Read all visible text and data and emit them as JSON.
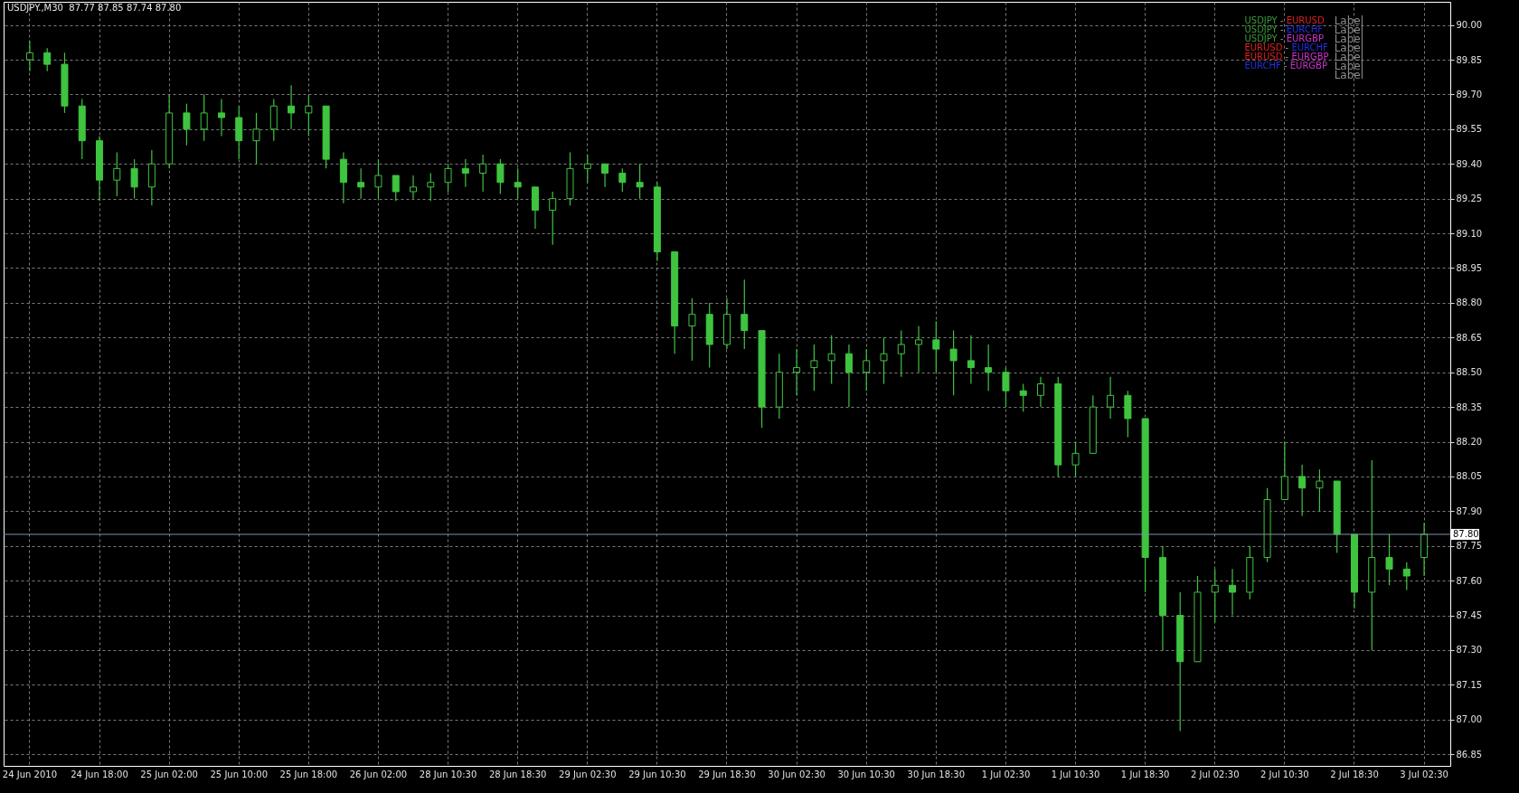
{
  "chart_data": {
    "type": "candlestick",
    "title": "USDJPY.,M30  87.77 87.85 87.74 87.80",
    "categories": [
      "24 Jun 2010",
      null,
      null,
      null,
      "24 Jun 18:00",
      null,
      null,
      null,
      "25 Jun 02:00",
      null,
      null,
      null,
      "25 Jun 10:00",
      null,
      null,
      null,
      "25 Jun 18:00",
      null,
      null,
      null,
      "26 Jun 02:00",
      null,
      null,
      null,
      "28 Jun 10:30",
      null,
      null,
      null,
      "28 Jun 18:30",
      null,
      null,
      null,
      "29 Jun 02:30",
      null,
      null,
      null,
      "29 Jun 10:30",
      null,
      null,
      null,
      "29 Jun 18:30",
      null,
      null,
      null,
      "30 Jun 02:30",
      null,
      null,
      null,
      "30 Jun 10:30",
      null,
      null,
      null,
      "30 Jun 18:30",
      null,
      null,
      null,
      "1 Jul 02:30",
      null,
      null,
      null,
      "1 Jul 10:30",
      null,
      null,
      null,
      "1 Jul 18:30",
      null,
      null,
      null,
      "2 Jul 02:30",
      null,
      null,
      null,
      "2 Jul 10:30",
      null,
      null,
      null,
      "2 Jul 18:30",
      null,
      null,
      null,
      "3 Jul 02:30"
    ],
    "ohlc": [
      [
        89.85,
        89.93,
        89.8,
        89.88
      ],
      [
        89.88,
        89.9,
        89.8,
        89.83
      ],
      [
        89.83,
        89.88,
        89.62,
        89.65
      ],
      [
        89.65,
        89.68,
        89.42,
        89.5
      ],
      [
        89.5,
        89.52,
        89.24,
        89.33
      ],
      [
        89.33,
        89.45,
        89.26,
        89.38
      ],
      [
        89.38,
        89.42,
        89.25,
        89.3
      ],
      [
        89.3,
        89.46,
        89.22,
        89.4
      ],
      [
        89.4,
        89.7,
        89.38,
        89.62
      ],
      [
        89.62,
        89.66,
        89.48,
        89.55
      ],
      [
        89.55,
        89.7,
        89.5,
        89.62
      ],
      [
        89.62,
        89.68,
        89.52,
        89.6
      ],
      [
        89.6,
        89.65,
        89.42,
        89.5
      ],
      [
        89.5,
        89.62,
        89.4,
        89.55
      ],
      [
        89.55,
        89.68,
        89.5,
        89.65
      ],
      [
        89.65,
        89.74,
        89.55,
        89.62
      ],
      [
        89.62,
        89.7,
        89.52,
        89.65
      ],
      [
        89.65,
        89.65,
        89.38,
        89.42
      ],
      [
        89.42,
        89.45,
        89.23,
        89.32
      ],
      [
        89.32,
        89.38,
        89.25,
        89.3
      ],
      [
        89.3,
        89.42,
        89.25,
        89.35
      ],
      [
        89.35,
        89.35,
        89.24,
        89.28
      ],
      [
        89.28,
        89.35,
        89.25,
        89.3
      ],
      [
        89.3,
        89.36,
        89.24,
        89.32
      ],
      [
        89.32,
        89.4,
        89.28,
        89.38
      ],
      [
        89.38,
        89.42,
        89.3,
        89.36
      ],
      [
        89.36,
        89.44,
        89.28,
        89.4
      ],
      [
        89.4,
        89.42,
        89.27,
        89.32
      ],
      [
        89.32,
        89.38,
        89.25,
        89.3
      ],
      [
        89.3,
        89.3,
        89.12,
        89.2
      ],
      [
        89.2,
        89.28,
        89.05,
        89.25
      ],
      [
        89.25,
        89.45,
        89.22,
        89.38
      ],
      [
        89.38,
        89.44,
        89.32,
        89.4
      ],
      [
        89.4,
        89.4,
        89.3,
        89.36
      ],
      [
        89.36,
        89.38,
        89.28,
        89.32
      ],
      [
        89.32,
        89.4,
        89.25,
        89.3
      ],
      [
        89.3,
        89.32,
        88.98,
        89.02
      ],
      [
        89.02,
        89.02,
        88.58,
        88.7
      ],
      [
        88.7,
        88.82,
        88.55,
        88.75
      ],
      [
        88.75,
        88.8,
        88.52,
        88.62
      ],
      [
        88.62,
        88.82,
        88.6,
        88.75
      ],
      [
        88.75,
        88.9,
        88.6,
        88.68
      ],
      [
        88.68,
        88.68,
        88.26,
        88.35
      ],
      [
        88.35,
        88.58,
        88.3,
        88.5
      ],
      [
        88.5,
        88.6,
        88.4,
        88.52
      ],
      [
        88.52,
        88.62,
        88.42,
        88.55
      ],
      [
        88.55,
        88.66,
        88.45,
        88.58
      ],
      [
        88.58,
        88.62,
        88.35,
        88.5
      ],
      [
        88.5,
        88.6,
        88.42,
        88.55
      ],
      [
        88.55,
        88.65,
        88.45,
        88.58
      ],
      [
        88.58,
        88.68,
        88.48,
        88.62
      ],
      [
        88.62,
        88.7,
        88.5,
        88.64
      ],
      [
        88.64,
        88.72,
        88.5,
        88.6
      ],
      [
        88.6,
        88.68,
        88.4,
        88.55
      ],
      [
        88.55,
        88.66,
        88.45,
        88.52
      ],
      [
        88.52,
        88.62,
        88.42,
        88.5
      ],
      [
        88.5,
        88.52,
        88.35,
        88.42
      ],
      [
        88.42,
        88.45,
        88.33,
        88.4
      ],
      [
        88.4,
        88.48,
        88.35,
        88.45
      ],
      [
        88.45,
        88.48,
        88.05,
        88.1
      ],
      [
        88.1,
        88.2,
        88.05,
        88.15
      ],
      [
        88.15,
        88.4,
        88.15,
        88.35
      ],
      [
        88.35,
        88.48,
        88.3,
        88.4
      ],
      [
        88.4,
        88.42,
        88.22,
        88.3
      ],
      [
        88.3,
        88.3,
        87.55,
        87.7
      ],
      [
        87.7,
        87.75,
        87.3,
        87.45
      ],
      [
        87.45,
        87.55,
        86.95,
        87.25
      ],
      [
        87.25,
        87.62,
        87.25,
        87.55
      ],
      [
        87.55,
        87.65,
        87.42,
        87.58
      ],
      [
        87.58,
        87.65,
        87.45,
        87.55
      ],
      [
        87.55,
        87.75,
        87.52,
        87.7
      ],
      [
        87.7,
        88.0,
        87.68,
        87.95
      ],
      [
        87.95,
        88.2,
        87.95,
        88.05
      ],
      [
        88.05,
        88.1,
        87.88,
        88.0
      ],
      [
        88.0,
        88.08,
        87.9,
        88.03
      ],
      [
        88.03,
        88.03,
        87.72,
        87.8
      ],
      [
        87.8,
        87.8,
        87.48,
        87.55
      ],
      [
        87.55,
        88.12,
        87.3,
        87.7
      ],
      [
        87.7,
        87.8,
        87.58,
        87.65
      ],
      [
        87.65,
        87.68,
        87.56,
        87.62
      ],
      [
        87.7,
        87.85,
        87.62,
        87.8
      ]
    ],
    "color": "#3fc43f",
    "ylim": [
      86.8,
      90.1
    ],
    "yticks": [
      {
        "value": 86.85,
        "label": "86.85"
      },
      {
        "value": 87.0,
        "label": "87.00"
      },
      {
        "value": 87.15,
        "label": "87.15"
      },
      {
        "value": 87.3,
        "label": "87.30"
      },
      {
        "value": 87.45,
        "label": "87.45"
      },
      {
        "value": 87.6,
        "label": "87.60"
      },
      {
        "value": 87.75,
        "label": "87.75"
      },
      {
        "value": 87.9,
        "label": "87.90"
      },
      {
        "value": 88.05,
        "label": "88.05"
      },
      {
        "value": 88.2,
        "label": "88.20"
      },
      {
        "value": 88.35,
        "label": "88.35"
      },
      {
        "value": 88.5,
        "label": "88.50"
      },
      {
        "value": 88.65,
        "label": "88.65"
      },
      {
        "value": 88.8,
        "label": "88.80"
      },
      {
        "value": 88.95,
        "label": "88.95"
      },
      {
        "value": 89.1,
        "label": "89.10"
      },
      {
        "value": 89.25,
        "label": "89.25"
      },
      {
        "value": 89.4,
        "label": "89.40"
      },
      {
        "value": 89.55,
        "label": "89.55"
      },
      {
        "value": 89.7,
        "label": "89.70"
      },
      {
        "value": 89.85,
        "label": "89.85"
      },
      {
        "value": 90.0,
        "label": "90.00"
      }
    ],
    "ref_lines": [
      {
        "axis": "y",
        "value": 87.8,
        "label": "87.80",
        "color": "#7f93ad"
      }
    ],
    "grid": true,
    "annotations": [
      "USDJPY - EURUSD",
      "USDJPY - EURCHF",
      "USDJPY - EURGBP",
      "EURUSD - EURCHF",
      "EURUSD - EURGBP",
      "EURCHF - EURGBP",
      "Label",
      "Label",
      "Label",
      "Label",
      "Label",
      "Label",
      "Label"
    ]
  }
}
